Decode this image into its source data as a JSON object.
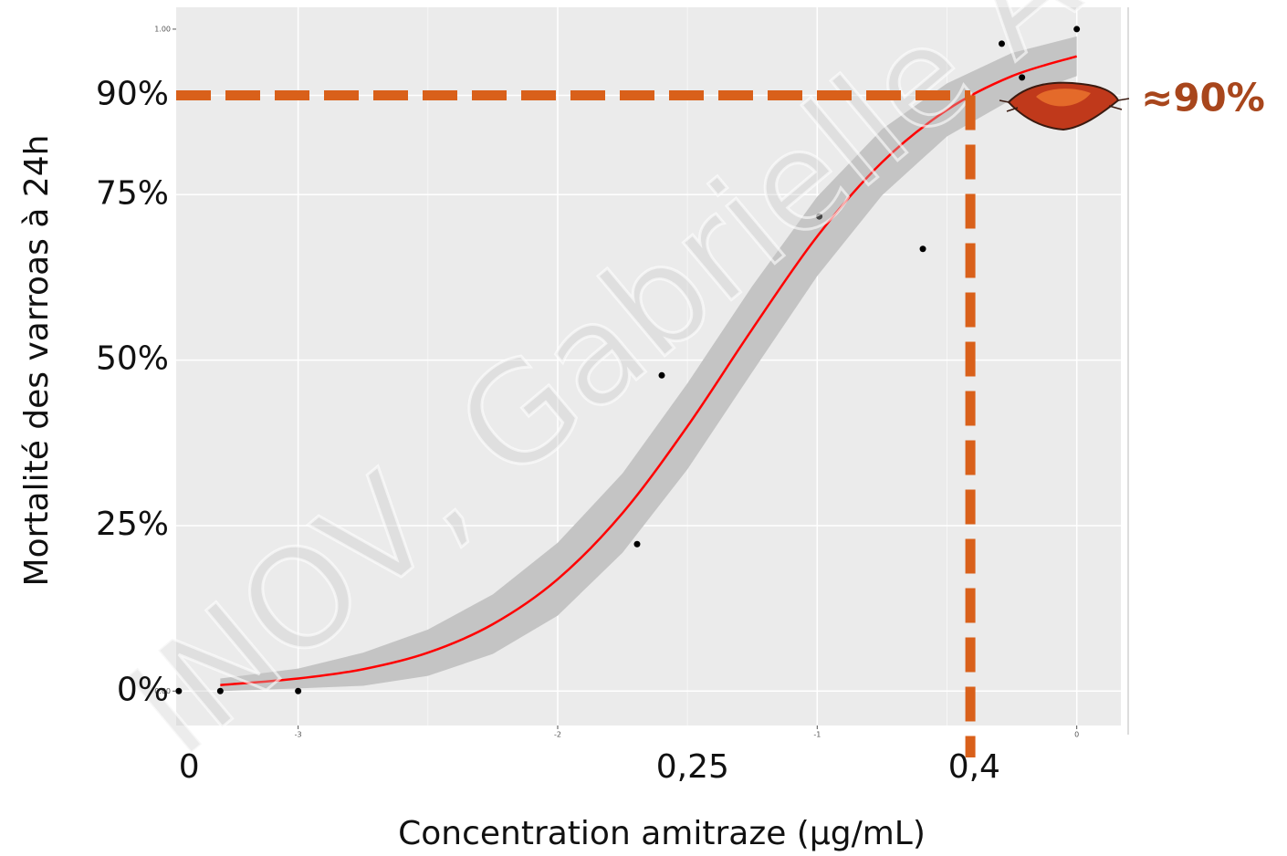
{
  "chart_data": {
    "type": "dose-response",
    "y_label": "Mortalité des varroas à 24h",
    "x_label": "Concentration amitraze (µg/mL)",
    "annotation": "≈90%",
    "watermark": "INOV, Gabrielle AL",
    "xlim": [
      -3.47,
      0.17
    ],
    "ylim": [
      -0.052,
      1.033
    ],
    "xticks": [
      -3,
      -2,
      -1,
      0
    ],
    "yticks": [
      {
        "value": 0,
        "label": "0.00"
      },
      {
        "value": 1,
        "label": "1.00"
      }
    ],
    "grid": true,
    "overlay_yticks": [
      {
        "value": 0.9,
        "label": "90%"
      },
      {
        "value": 0.75,
        "label": "75%"
      },
      {
        "value": 0.5,
        "label": "50%"
      },
      {
        "value": 0.25,
        "label": "25%"
      },
      {
        "value": 0,
        "label": "0%"
      }
    ],
    "overlay_xticks": [
      {
        "value": -3.42,
        "label": "0"
      },
      {
        "value": -1.48,
        "label": "0,25"
      },
      {
        "value": -0.395,
        "label": "0,4"
      }
    ],
    "reference": {
      "x": -0.41,
      "y": 0.9,
      "color": "#d9601a"
    },
    "points": {
      "color": "#000000",
      "x": [
        -3.46,
        -3.3,
        -3,
        -1.694,
        -1.599,
        -0.992,
        -0.593,
        -0.289,
        -0.211,
        0
      ],
      "values": [
        0,
        0,
        0,
        0.222,
        0.477,
        0.717,
        0.668,
        0.978,
        0.927,
        1.0
      ]
    },
    "fit": {
      "color": "#ff0000",
      "band_color": "#c4c4c4",
      "x": [
        -3.3,
        -3,
        -2.75,
        -2.5,
        -2.25,
        -2,
        -1.75,
        -1.5,
        -1.25,
        -1,
        -0.75,
        -0.5,
        -0.25,
        0
      ],
      "values": [
        0.009,
        0.019,
        0.033,
        0.058,
        0.101,
        0.169,
        0.269,
        0.4,
        0.547,
        0.687,
        0.799,
        0.878,
        0.929,
        0.959
      ],
      "lower": [
        0.0,
        0.004,
        0.008,
        0.023,
        0.056,
        0.114,
        0.209,
        0.335,
        0.482,
        0.627,
        0.749,
        0.838,
        0.894,
        0.929
      ],
      "upper": [
        0.019,
        0.034,
        0.058,
        0.093,
        0.146,
        0.224,
        0.329,
        0.465,
        0.612,
        0.747,
        0.849,
        0.918,
        0.964,
        0.989
      ]
    }
  }
}
